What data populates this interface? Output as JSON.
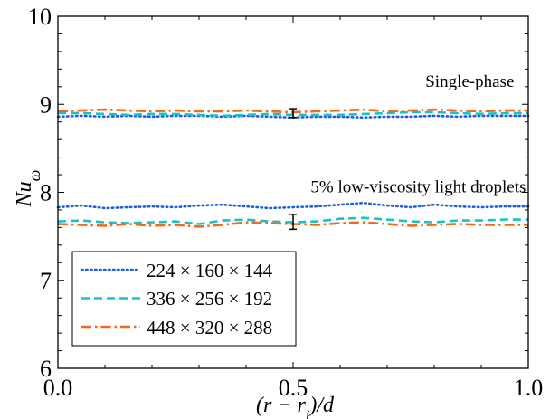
{
  "chart_data": {
    "type": "line",
    "xlabel": "(r − r_i)/d",
    "xlabel_display": "(r − r",
    "xlabel_sub": "i",
    "xlabel_tail": ")/d",
    "ylabel": "Nu_ω",
    "ylabel_main": "Nu",
    "ylabel_sub": "ω",
    "xlim": [
      0.0,
      1.0
    ],
    "ylim": [
      6,
      10
    ],
    "x_ticks": [
      0.0,
      0.5,
      1.0
    ],
    "x_tick_labels": [
      "0.0",
      "0.5",
      "1.0"
    ],
    "y_ticks": [
      6,
      7,
      8,
      9,
      10
    ],
    "y_tick_labels": [
      "6",
      "7",
      "8",
      "9",
      "10"
    ],
    "grid": false,
    "legend_placement": "bottom-left",
    "annotations": [
      {
        "text": "Single-phase",
        "x": 0.97,
        "y": 9.2
      },
      {
        "text": "5% low-viscosity light droplets",
        "x": 0.995,
        "y": 8.0
      }
    ],
    "error_bars": [
      {
        "x": 0.5,
        "y": 8.9,
        "lower": 8.85,
        "upper": 8.95
      },
      {
        "x": 0.5,
        "y": 7.65,
        "lower": 7.58,
        "upper": 7.75
      }
    ],
    "x": [
      0.0,
      0.05,
      0.1,
      0.15,
      0.2,
      0.25,
      0.3,
      0.35,
      0.4,
      0.45,
      0.5,
      0.55,
      0.6,
      0.65,
      0.7,
      0.75,
      0.8,
      0.85,
      0.9,
      0.95,
      1.0
    ],
    "series": [
      {
        "name": "224×160×144",
        "legend_label": "224 × 160 × 144",
        "color": "#1f5fd6",
        "dash": "dotted",
        "groups": [
          [
            8.86,
            8.87,
            8.86,
            8.87,
            8.86,
            8.87,
            8.87,
            8.86,
            8.87,
            8.86,
            8.85,
            8.86,
            8.86,
            8.85,
            8.86,
            8.86,
            8.87,
            8.86,
            8.87,
            8.87,
            8.87
          ],
          [
            7.83,
            7.85,
            7.82,
            7.83,
            7.84,
            7.83,
            7.85,
            7.86,
            7.84,
            7.82,
            7.83,
            7.84,
            7.86,
            7.88,
            7.85,
            7.83,
            7.86,
            7.84,
            7.83,
            7.84,
            7.84
          ]
        ]
      },
      {
        "name": "336×256×192",
        "legend_label": "336 × 256 × 192",
        "color": "#19c2c9",
        "dash": "dashed",
        "groups": [
          [
            8.9,
            8.9,
            8.89,
            8.88,
            8.89,
            8.89,
            8.88,
            8.87,
            8.88,
            8.89,
            8.88,
            8.88,
            8.88,
            8.89,
            8.9,
            8.91,
            8.91,
            8.9,
            8.89,
            8.9,
            8.9
          ],
          [
            7.67,
            7.68,
            7.66,
            7.65,
            7.66,
            7.67,
            7.64,
            7.68,
            7.69,
            7.67,
            7.66,
            7.67,
            7.7,
            7.71,
            7.69,
            7.67,
            7.66,
            7.68,
            7.68,
            7.69,
            7.69
          ]
        ]
      },
      {
        "name": "448×320×288",
        "legend_label": "448 × 320 × 288",
        "color": "#ee6a1c",
        "dash": "dashdot",
        "groups": [
          [
            8.92,
            8.93,
            8.94,
            8.93,
            8.92,
            8.93,
            8.92,
            8.92,
            8.93,
            8.92,
            8.91,
            8.92,
            8.93,
            8.94,
            8.92,
            8.93,
            8.94,
            8.93,
            8.92,
            8.93,
            8.93
          ],
          [
            7.64,
            7.63,
            7.62,
            7.64,
            7.62,
            7.63,
            7.61,
            7.63,
            7.66,
            7.65,
            7.64,
            7.63,
            7.65,
            7.66,
            7.64,
            7.62,
            7.63,
            7.64,
            7.63,
            7.63,
            7.63
          ]
        ]
      }
    ]
  }
}
